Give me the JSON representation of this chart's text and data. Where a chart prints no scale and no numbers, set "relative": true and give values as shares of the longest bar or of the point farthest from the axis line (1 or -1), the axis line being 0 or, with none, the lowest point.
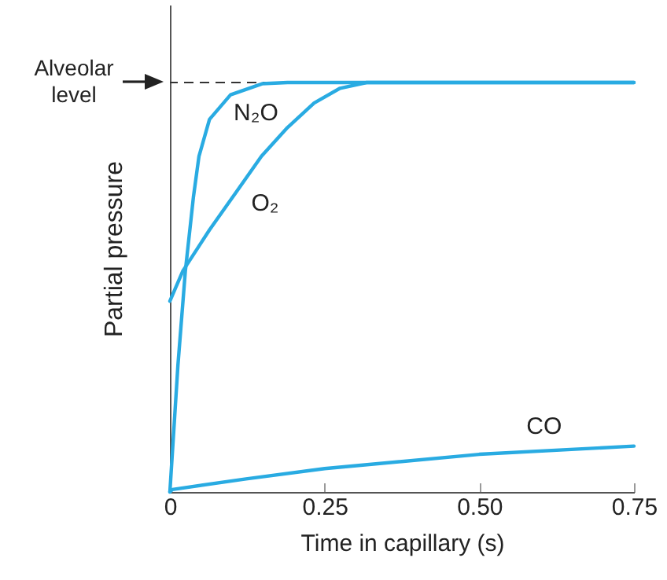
{
  "chart_data": {
    "type": "line",
    "relative": true,
    "xlabel": "Time in capillary (s)",
    "ylabel": "Partial pressure",
    "xlim": [
      0,
      0.75
    ],
    "xticks": [
      0,
      {
        "value": 0.25,
        "label": "0.25"
      },
      {
        "value": 0.5,
        "label": "0.50"
      },
      {
        "value": 0.75,
        "label": "0.75"
      }
    ],
    "grid": false,
    "series": [
      {
        "name": "N₂O",
        "color": "#29abe2",
        "x": [
          0,
          0.013,
          0.025,
          0.038,
          0.047,
          0.064,
          0.098,
          0.149,
          0.19,
          0.75
        ],
        "values": [
          0,
          0.31,
          0.54,
          0.72,
          0.82,
          0.91,
          0.97,
          0.997,
          1,
          1
        ]
      },
      {
        "name": "O₂",
        "color": "#29abe2",
        "x": [
          0,
          0.021,
          0.064,
          0.106,
          0.148,
          0.19,
          0.233,
          0.275,
          0.318,
          0.75
        ],
        "values": [
          0.466,
          0.54,
          0.64,
          0.73,
          0.82,
          0.89,
          0.95,
          0.986,
          1,
          1
        ]
      },
      {
        "name": "CO",
        "color": "#29abe2",
        "x": [
          0,
          0.004,
          0.123,
          0.25,
          0.5,
          0.75
        ],
        "values": [
          0,
          0.006,
          0.032,
          0.057,
          0.092,
          0.112
        ]
      }
    ],
    "ref_lines": [
      {
        "axis": "y",
        "value": 1,
        "label": "Alveolar level",
        "color": "#333333",
        "line_style": "dashed"
      }
    ]
  }
}
